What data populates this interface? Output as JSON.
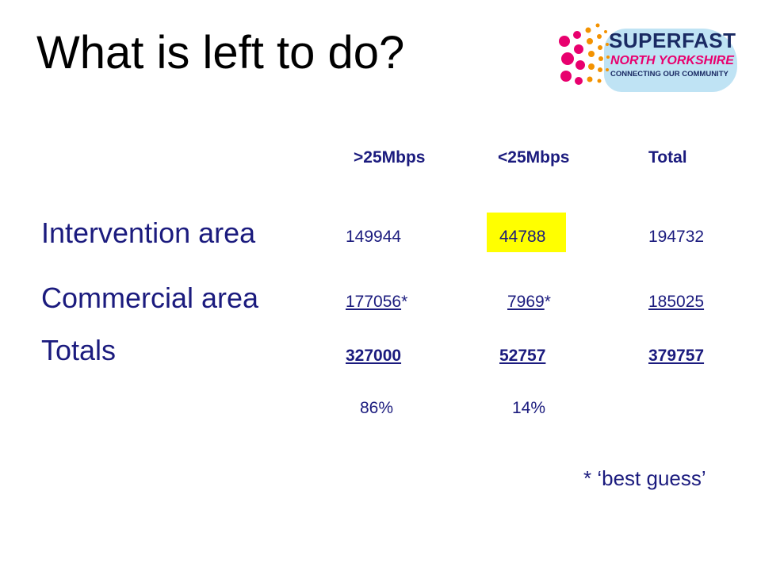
{
  "slide": {
    "title": "What is left to do?",
    "logo": {
      "line1": "SUPERFAST",
      "line2": "NORTH YORKSHIRE",
      "line3": "CONNECTING OUR COMMUNITY",
      "colors": {
        "navy": "#1a2a63",
        "pink": "#e8006e",
        "blob": "#bfe3f4",
        "orange": "#f39200"
      }
    },
    "table": {
      "headers": {
        "over25": ">25Mbps",
        "under25": "<25Mbps",
        "total": "Total"
      },
      "rows": [
        {
          "label": "Intervention area",
          "over25": "149944",
          "under25": "44788",
          "total": "194732"
        },
        {
          "label": "Commercial area",
          "over25": "177056",
          "over25_suffix": "*",
          "under25": "7969",
          "under25_suffix": "*",
          "total": "185025"
        },
        {
          "label": "Totals",
          "over25": "327000",
          "under25": "52757",
          "total": "379757"
        }
      ],
      "percentages": {
        "over25": "86%",
        "under25": "14%"
      },
      "highlight_color": "#ffff00"
    },
    "footnote": "* ‘best guess’",
    "text_color": "#1b1b7e"
  }
}
